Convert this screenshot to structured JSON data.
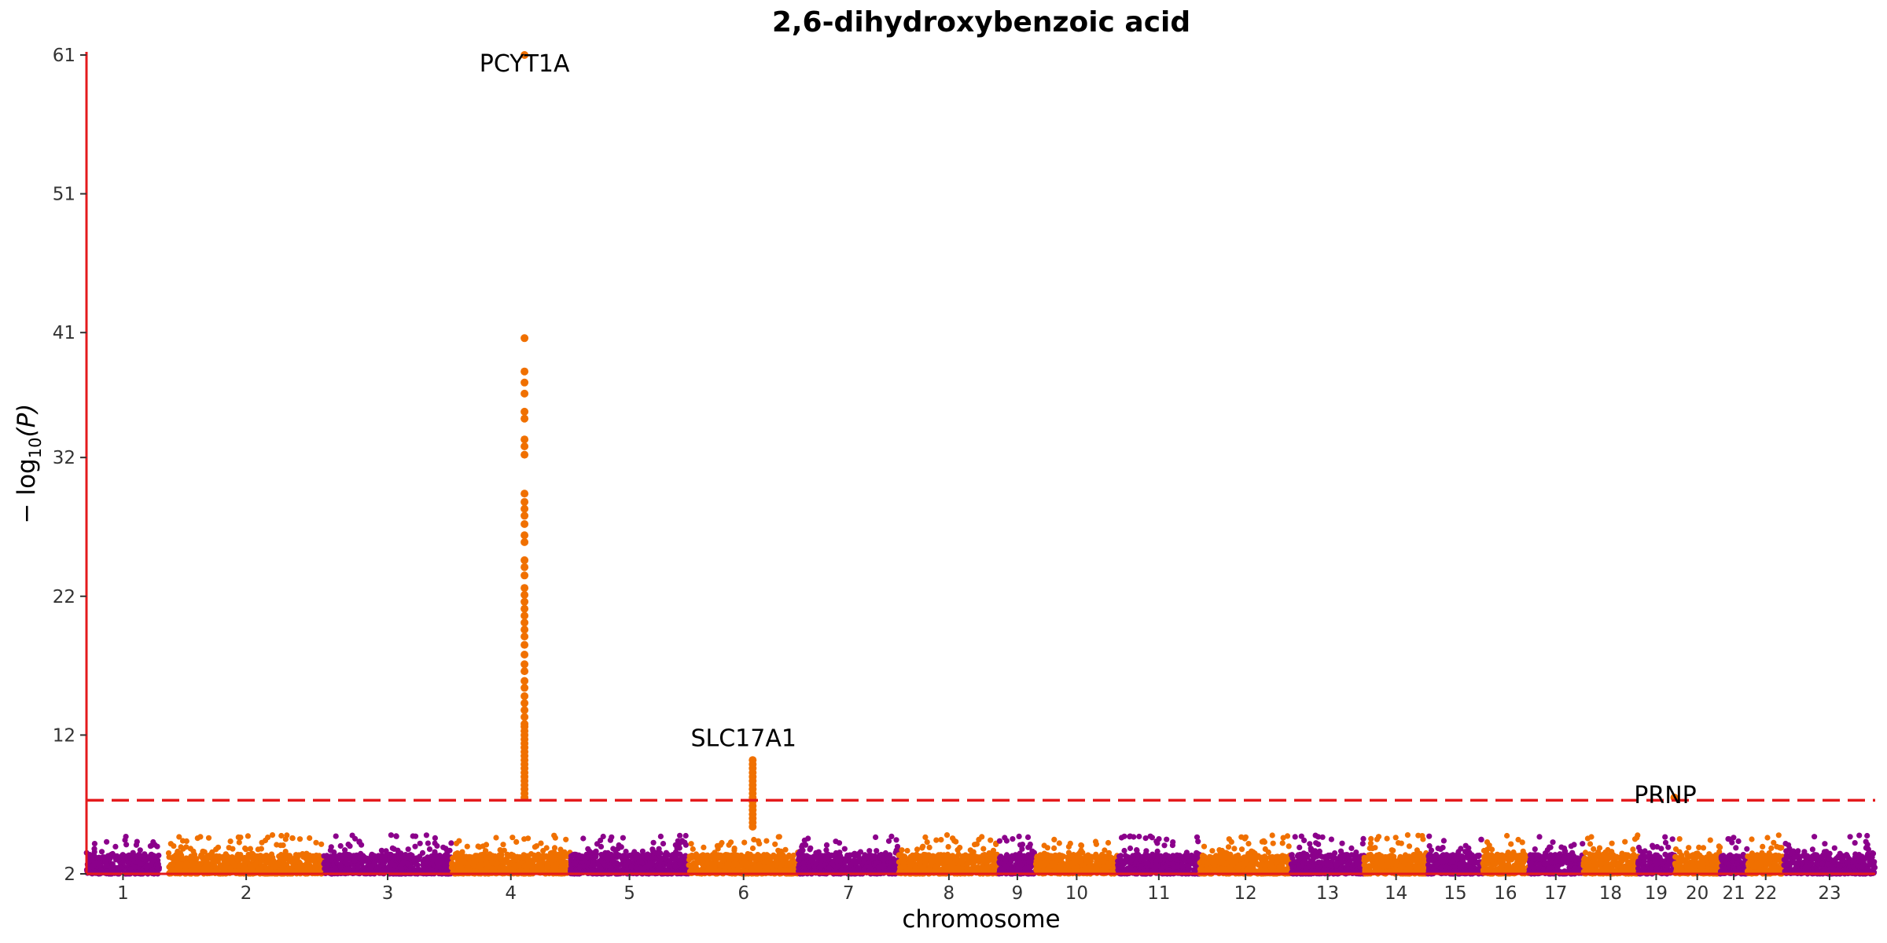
{
  "chart_data": {
    "type": "scatter",
    "subtype": "manhattan",
    "title": "2,6-dihydroxybenzoic acid",
    "xlabel": "chromosome",
    "ylabel": {
      "prefix": "− log",
      "sub": "10",
      "suffix": "(P)"
    },
    "ylim": [
      2,
      61
    ],
    "yticks": [
      2,
      12,
      22,
      32,
      41,
      51,
      61
    ],
    "threshold": 7.3,
    "colors": {
      "odd": "#8B008B",
      "even": "#F07000",
      "axis": "#E41A1C",
      "threshold": "#E41A1C"
    },
    "chromosomes": [
      {
        "label": "1",
        "start": 0.0,
        "end": 4.0
      },
      {
        "label": "2",
        "start": 4.5,
        "end": 13.0
      },
      {
        "label": "3",
        "start": 13.0,
        "end": 20.0
      },
      {
        "label": "4",
        "start": 20.0,
        "end": 26.5
      },
      {
        "label": "5",
        "start": 26.5,
        "end": 33.0
      },
      {
        "label": "6",
        "start": 33.0,
        "end": 39.0
      },
      {
        "label": "7",
        "start": 39.0,
        "end": 44.5
      },
      {
        "label": "8",
        "start": 44.5,
        "end": 50.0
      },
      {
        "label": "9",
        "start": 50.0,
        "end": 52.0
      },
      {
        "label": "10",
        "start": 52.0,
        "end": 56.5
      },
      {
        "label": "11",
        "start": 56.5,
        "end": 61.0
      },
      {
        "label": "12",
        "start": 61.0,
        "end": 66.0
      },
      {
        "label": "13",
        "start": 66.0,
        "end": 70.0
      },
      {
        "label": "14",
        "start": 70.0,
        "end": 73.5
      },
      {
        "label": "15",
        "start": 73.5,
        "end": 76.5
      },
      {
        "label": "16",
        "start": 76.5,
        "end": 79.0
      },
      {
        "label": "17",
        "start": 79.0,
        "end": 82.0
      },
      {
        "label": "18",
        "start": 82.0,
        "end": 85.0
      },
      {
        "label": "19",
        "start": 85.0,
        "end": 87.0
      },
      {
        "label": "20",
        "start": 87.0,
        "end": 89.5
      },
      {
        "label": "21",
        "start": 89.5,
        "end": 91.0
      },
      {
        "label": "22",
        "start": 91.0,
        "end": 93.0
      },
      {
        "label": "23",
        "start": 93.0,
        "end": 98.0
      }
    ],
    "peaks": [
      {
        "x": 24.0,
        "values": [
          61.0,
          40.6,
          38.2,
          37.4,
          36.6,
          35.3,
          34.8,
          33.3,
          32.8,
          32.2,
          29.4,
          28.8,
          28.3,
          27.8,
          27.2,
          26.4,
          25.9,
          24.6,
          24.1,
          23.5,
          22.6,
          22.1,
          21.6,
          21.1,
          20.6,
          20.1,
          19.6,
          19.1,
          18.5,
          17.8,
          17.1,
          16.6,
          15.9,
          15.4,
          14.8,
          14.3,
          13.8,
          13.3,
          12.8,
          12.6,
          12.3,
          12.0,
          11.7,
          11.4,
          11.1,
          10.8,
          10.5,
          10.2,
          9.9,
          9.6,
          9.3,
          9.0,
          8.7,
          8.4,
          8.1,
          7.8,
          7.5
        ]
      },
      {
        "x": 36.5,
        "values": [
          10.2,
          9.9,
          9.6,
          9.3,
          9.0,
          8.7,
          8.4,
          8.1,
          7.8,
          7.5,
          7.2,
          6.9,
          6.6,
          6.3,
          6.0,
          5.7,
          5.4
        ]
      },
      {
        "x": 87.0,
        "values": [
          7.5
        ]
      }
    ],
    "annotations": [
      {
        "text": "PCYT1A",
        "x": 24.0,
        "y": 59.8
      },
      {
        "text": "SLC17A1",
        "x": 36.0,
        "y": 11.2
      },
      {
        "text": "PRNP",
        "x": 86.5,
        "y": 7.1
      }
    ]
  }
}
